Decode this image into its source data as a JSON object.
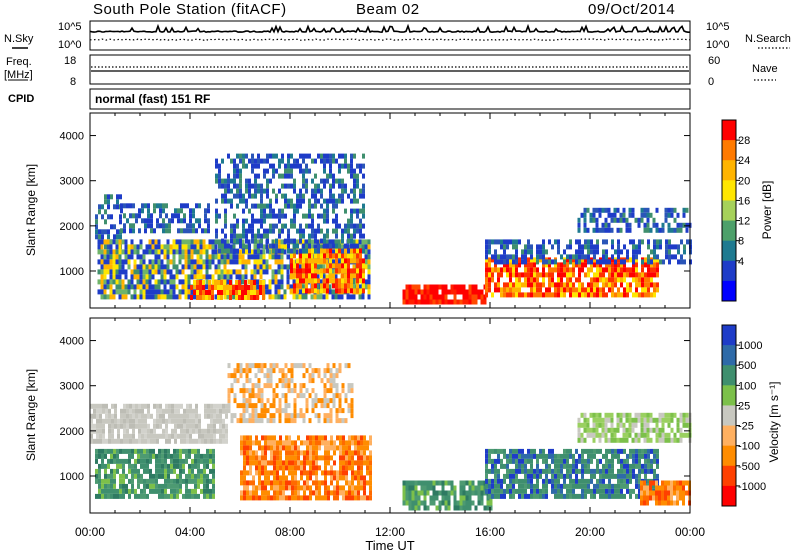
{
  "header": {
    "station": "South Pole Station (fitACF)",
    "beam": "Beam 02",
    "date": "09/Oct/2014"
  },
  "top_panels": {
    "nsky_label": "N.Sky",
    "nsearch_label": "N.Search",
    "noise_ticks_left": [
      "10^5",
      "10^0"
    ],
    "noise_ticks_right": [
      "10^5",
      "10^0"
    ],
    "freq_label_1": "Freq.",
    "freq_label_2": "[MHz]",
    "freq_ticks": [
      "18",
      "8"
    ],
    "nave_label": "Nave",
    "nave_ticks": [
      "60",
      "0"
    ],
    "cpid_label": "CPID",
    "cpid_value": "normal (fast) 151 RF"
  },
  "chart_data": [
    {
      "type": "heatmap",
      "name": "Power",
      "ylabel": "Slant Range [km]",
      "y_ticks": [
        "4000",
        "3000",
        "2000",
        "1000"
      ],
      "ylim": [
        180,
        4500
      ],
      "colorbar_label": "Power [dB]",
      "colorbar_ticks": [
        "28",
        "24",
        "20",
        "16",
        "12",
        "8",
        "4"
      ],
      "colorbar_colors": [
        "#ff0000",
        "#ff7a00",
        "#ffb400",
        "#ffe600",
        "#a6d15a",
        "#4da06a",
        "#1e7a90",
        "#1e3cc8",
        "#0000ff"
      ],
      "regions": [
        {
          "t0": 0.2,
          "t1": 1.2,
          "r0": 1500,
          "r1": 2700,
          "level": "low"
        },
        {
          "t0": 1.2,
          "t1": 4.8,
          "r0": 1900,
          "r1": 2500,
          "level": "low"
        },
        {
          "t0": 0.3,
          "t1": 11.2,
          "r0": 450,
          "r1": 1700,
          "level": "mixed"
        },
        {
          "t0": 4.0,
          "t1": 7.0,
          "r0": 450,
          "r1": 800,
          "level": "high"
        },
        {
          "t0": 8.0,
          "t1": 11.0,
          "r0": 600,
          "r1": 1500,
          "level": "high"
        },
        {
          "t0": 5.0,
          "t1": 11.0,
          "r0": 1400,
          "r1": 3600,
          "level": "low"
        },
        {
          "t0": 12.5,
          "t1": 15.8,
          "r0": 300,
          "r1": 700,
          "level": "peak"
        },
        {
          "t0": 15.8,
          "t1": 22.7,
          "r0": 500,
          "r1": 1300,
          "level": "high"
        },
        {
          "t0": 15.8,
          "t1": 24.0,
          "r0": 1200,
          "r1": 1700,
          "level": "low"
        },
        {
          "t0": 19.5,
          "t1": 24.0,
          "r0": 1900,
          "r1": 2400,
          "level": "low"
        }
      ]
    },
    {
      "type": "heatmap",
      "name": "Velocity",
      "ylabel": "Slant Range [km]",
      "y_ticks": [
        "4000",
        "3000",
        "2000",
        "1000"
      ],
      "ylim": [
        180,
        4500
      ],
      "colorbar_label": "Velocity [m s⁻¹]",
      "colorbar_ticks": [
        "1000",
        "500",
        "100",
        "25",
        "-25",
        "-100",
        "-500",
        "-1000"
      ],
      "colorbar_colors": [
        "#1e3cc8",
        "#2e6aa8",
        "#3f8f6e",
        "#7cc04a",
        "#c8c8c0",
        "#ffb060",
        "#ff8c00",
        "#ff4000",
        "#ff0000"
      ],
      "regions": [
        {
          "t0": 0.0,
          "t1": 5.5,
          "r0": 1800,
          "r1": 2600,
          "level": "gray"
        },
        {
          "t0": 0.2,
          "t1": 5.0,
          "r0": 500,
          "r1": 1600,
          "level": "green"
        },
        {
          "t0": 6.0,
          "t1": 11.2,
          "r0": 500,
          "r1": 1900,
          "level": "orange"
        },
        {
          "t0": 5.5,
          "t1": 10.5,
          "r0": 2200,
          "r1": 3500,
          "level": "orange-sparse"
        },
        {
          "t0": 12.5,
          "t1": 16.0,
          "r0": 300,
          "r1": 900,
          "level": "green"
        },
        {
          "t0": 15.8,
          "t1": 22.7,
          "r0": 500,
          "r1": 1600,
          "level": "blue-green"
        },
        {
          "t0": 19.5,
          "t1": 24.0,
          "r0": 1800,
          "r1": 2400,
          "level": "light-green"
        },
        {
          "t0": 22.0,
          "t1": 24.0,
          "r0": 400,
          "r1": 900,
          "level": "orange"
        }
      ]
    }
  ],
  "x_axis": {
    "ticks": [
      "00:00",
      "04:00",
      "08:00",
      "12:00",
      "16:00",
      "20:00",
      "00:00"
    ],
    "label": "Time UT"
  }
}
